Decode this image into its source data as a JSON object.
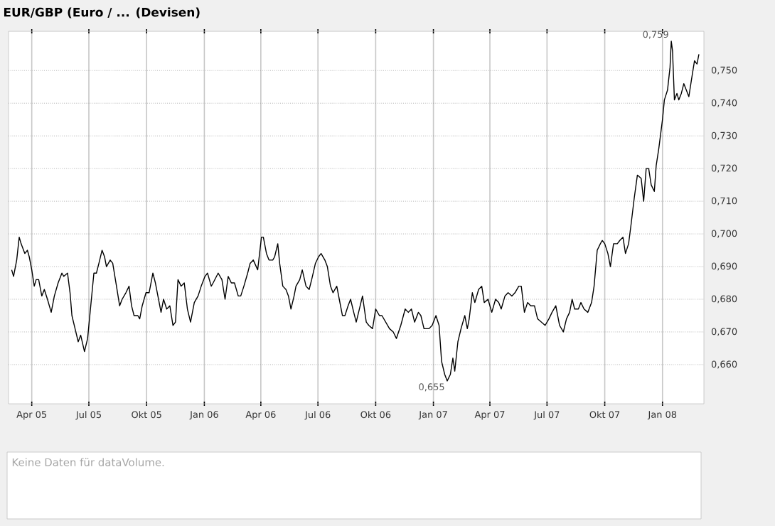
{
  "chart_data": {
    "type": "line",
    "title": "EUR/GBP (Euro / ... (Devisen)",
    "color": "#000000",
    "grid": true,
    "xlim": [
      "2005-02-23",
      "2008-03-07"
    ],
    "ylim": [
      0.648,
      0.762
    ],
    "xticks": [
      {
        "value": "2005-04-01",
        "label": "Apr 05"
      },
      {
        "value": "2005-07-01",
        "label": "Jul 05"
      },
      {
        "value": "2005-10-01",
        "label": "Okt 05"
      },
      {
        "value": "2006-01-01",
        "label": "Jan 06"
      },
      {
        "value": "2006-04-01",
        "label": "Apr 06"
      },
      {
        "value": "2006-07-01",
        "label": "Jul 06"
      },
      {
        "value": "2006-10-01",
        "label": "Okt 06"
      },
      {
        "value": "2007-01-01",
        "label": "Jan 07"
      },
      {
        "value": "2007-04-01",
        "label": "Apr 07"
      },
      {
        "value": "2007-07-01",
        "label": "Jul 07"
      },
      {
        "value": "2007-10-01",
        "label": "Okt 07"
      },
      {
        "value": "2008-01-01",
        "label": "Jan 08"
      }
    ],
    "yticks": [
      {
        "value": 0.66,
        "label": "0,660"
      },
      {
        "value": 0.67,
        "label": "0,670"
      },
      {
        "value": 0.68,
        "label": "0,680"
      },
      {
        "value": 0.69,
        "label": "0,690"
      },
      {
        "value": 0.7,
        "label": "0,700"
      },
      {
        "value": 0.71,
        "label": "0,710"
      },
      {
        "value": 0.72,
        "label": "0,720"
      },
      {
        "value": 0.73,
        "label": "0,730"
      },
      {
        "value": 0.74,
        "label": "0,740"
      },
      {
        "value": 0.75,
        "label": "0,750"
      }
    ],
    "annotations": [
      {
        "text": "0,759",
        "x": "2008-01-15",
        "y": 0.759
      },
      {
        "text": "0,655",
        "x": "2007-01-23",
        "y": 0.655
      },
      "Keine Daten für dataVolume."
    ],
    "x": [
      "2005-02-28",
      "2005-03-03",
      "2005-03-08",
      "2005-03-12",
      "2005-03-15",
      "2005-03-21",
      "2005-03-25",
      "2005-03-28",
      "2005-04-01",
      "2005-04-05",
      "2005-04-08",
      "2005-04-12",
      "2005-04-17",
      "2005-04-21",
      "2005-04-26",
      "2005-05-02",
      "2005-05-07",
      "2005-05-13",
      "2005-05-19",
      "2005-05-22",
      "2005-05-28",
      "2005-06-01",
      "2005-06-04",
      "2005-06-09",
      "2005-06-14",
      "2005-06-18",
      "2005-06-24",
      "2005-06-29",
      "2005-07-04",
      "2005-07-09",
      "2005-07-13",
      "2005-07-17",
      "2005-07-22",
      "2005-07-26",
      "2005-07-29",
      "2005-08-04",
      "2005-08-08",
      "2005-08-14",
      "2005-08-19",
      "2005-08-23",
      "2005-08-29",
      "2005-09-03",
      "2005-09-07",
      "2005-09-11",
      "2005-09-17",
      "2005-09-20",
      "2005-09-24",
      "2005-09-30",
      "2005-10-05",
      "2005-10-11",
      "2005-10-15",
      "2005-10-21",
      "2005-10-24",
      "2005-10-28",
      "2005-11-02",
      "2005-11-07",
      "2005-11-12",
      "2005-11-16",
      "2005-11-20",
      "2005-11-25",
      "2005-11-30",
      "2005-12-05",
      "2005-12-10",
      "2005-12-16",
      "2005-12-22",
      "2005-12-27",
      "2006-01-02",
      "2006-01-06",
      "2006-01-12",
      "2006-01-15",
      "2006-01-23",
      "2006-01-29",
      "2006-02-03",
      "2006-02-08",
      "2006-02-13",
      "2006-02-18",
      "2006-02-24",
      "2006-02-28",
      "2006-03-05",
      "2006-03-11",
      "2006-03-15",
      "2006-03-20",
      "2006-03-27",
      "2006-03-30",
      "2006-04-02",
      "2006-04-05",
      "2006-04-10",
      "2006-04-14",
      "2006-04-20",
      "2006-04-23",
      "2006-04-28",
      "2006-05-01",
      "2006-05-06",
      "2006-05-11",
      "2006-05-15",
      "2006-05-19",
      "2006-05-24",
      "2006-05-27",
      "2006-06-02",
      "2006-06-06",
      "2006-06-12",
      "2006-06-17",
      "2006-06-21",
      "2006-06-27",
      "2006-07-02",
      "2006-07-06",
      "2006-07-12",
      "2006-07-16",
      "2006-07-21",
      "2006-07-25",
      "2006-07-31",
      "2006-08-04",
      "2006-08-09",
      "2006-08-13",
      "2006-08-18",
      "2006-08-22",
      "2006-08-27",
      "2006-08-31",
      "2006-09-05",
      "2006-09-10",
      "2006-09-16",
      "2006-09-20",
      "2006-09-26",
      "2006-10-01",
      "2006-10-07",
      "2006-10-11",
      "2006-10-17",
      "2006-10-23",
      "2006-10-29",
      "2006-11-03",
      "2006-11-10",
      "2006-11-17",
      "2006-11-22",
      "2006-11-27",
      "2006-12-02",
      "2006-12-08",
      "2006-12-12",
      "2006-12-17",
      "2006-12-25",
      "2006-12-30",
      "2007-01-05",
      "2007-01-10",
      "2007-01-14",
      "2007-01-19",
      "2007-01-23",
      "2007-01-28",
      "2007-02-01",
      "2007-02-04",
      "2007-02-09",
      "2007-02-14",
      "2007-02-20",
      "2007-02-24",
      "2007-02-27",
      "2007-03-04",
      "2007-03-08",
      "2007-03-14",
      "2007-03-19",
      "2007-03-23",
      "2007-03-29",
      "2007-04-04",
      "2007-04-10",
      "2007-04-15",
      "2007-04-19",
      "2007-04-25",
      "2007-04-30",
      "2007-05-06",
      "2007-05-11",
      "2007-05-17",
      "2007-05-21",
      "2007-05-26",
      "2007-05-31",
      "2007-06-05",
      "2007-06-11",
      "2007-06-16",
      "2007-06-22",
      "2007-06-28",
      "2007-07-04",
      "2007-07-09",
      "2007-07-15",
      "2007-07-21",
      "2007-07-27",
      "2007-08-01",
      "2007-08-06",
      "2007-08-10",
      "2007-08-14",
      "2007-08-20",
      "2007-08-24",
      "2007-08-29",
      "2007-09-04",
      "2007-09-10",
      "2007-09-14",
      "2007-09-19",
      "2007-09-24",
      "2007-09-27",
      "2007-10-01",
      "2007-10-06",
      "2007-10-10",
      "2007-10-15",
      "2007-10-21",
      "2007-10-25",
      "2007-10-30",
      "2007-11-03",
      "2007-11-08",
      "2007-11-12",
      "2007-11-17",
      "2007-11-22",
      "2007-11-28",
      "2007-12-02",
      "2007-12-06",
      "2007-12-10",
      "2007-12-14",
      "2007-12-19",
      "2007-12-22",
      "2007-12-26",
      "2008-01-01",
      "2008-01-04",
      "2008-01-09",
      "2008-01-13",
      "2008-01-15",
      "2008-01-17",
      "2008-01-20",
      "2008-01-24",
      "2008-01-27",
      "2008-01-31",
      "2008-02-04",
      "2008-02-08",
      "2008-02-12",
      "2008-02-16",
      "2008-02-21",
      "2008-02-25",
      "2008-02-28"
    ],
    "values": [
      0.689,
      0.687,
      0.692,
      0.699,
      0.697,
      0.694,
      0.695,
      0.693,
      0.689,
      0.684,
      0.686,
      0.686,
      0.681,
      0.683,
      0.68,
      0.676,
      0.681,
      0.685,
      0.688,
      0.687,
      0.688,
      0.682,
      0.675,
      0.671,
      0.667,
      0.669,
      0.664,
      0.668,
      0.678,
      0.688,
      0.688,
      0.691,
      0.695,
      0.693,
      0.69,
      0.692,
      0.691,
      0.684,
      0.678,
      0.68,
      0.682,
      0.684,
      0.678,
      0.675,
      0.675,
      0.674,
      0.678,
      0.682,
      0.682,
      0.688,
      0.685,
      0.679,
      0.676,
      0.68,
      0.677,
      0.678,
      0.672,
      0.673,
      0.686,
      0.684,
      0.685,
      0.677,
      0.673,
      0.679,
      0.681,
      0.684,
      0.687,
      0.688,
      0.684,
      0.685,
      0.688,
      0.686,
      0.68,
      0.687,
      0.685,
      0.685,
      0.681,
      0.681,
      0.684,
      0.688,
      0.691,
      0.692,
      0.689,
      0.694,
      0.699,
      0.699,
      0.694,
      0.692,
      0.692,
      0.693,
      0.697,
      0.691,
      0.684,
      0.683,
      0.681,
      0.677,
      0.681,
      0.684,
      0.686,
      0.689,
      0.684,
      0.683,
      0.686,
      0.691,
      0.693,
      0.694,
      0.692,
      0.69,
      0.684,
      0.682,
      0.684,
      0.68,
      0.675,
      0.675,
      0.678,
      0.68,
      0.676,
      0.673,
      0.677,
      0.681,
      0.673,
      0.672,
      0.671,
      0.677,
      0.675,
      0.675,
      0.673,
      0.671,
      0.67,
      0.668,
      0.672,
      0.677,
      0.676,
      0.677,
      0.673,
      0.676,
      0.675,
      0.671,
      0.671,
      0.672,
      0.675,
      0.672,
      0.661,
      0.657,
      0.655,
      0.657,
      0.662,
      0.658,
      0.667,
      0.671,
      0.675,
      0.671,
      0.674,
      0.682,
      0.679,
      0.683,
      0.684,
      0.679,
      0.68,
      0.676,
      0.68,
      0.679,
      0.677,
      0.681,
      0.682,
      0.681,
      0.682,
      0.684,
      0.684,
      0.676,
      0.679,
      0.678,
      0.678,
      0.674,
      0.673,
      0.672,
      0.674,
      0.676,
      0.678,
      0.672,
      0.67,
      0.674,
      0.676,
      0.68,
      0.677,
      0.677,
      0.679,
      0.677,
      0.676,
      0.679,
      0.684,
      0.695,
      0.697,
      0.698,
      0.697,
      0.694,
      0.69,
      0.697,
      0.697,
      0.698,
      0.699,
      0.694,
      0.697,
      0.703,
      0.711,
      0.718,
      0.717,
      0.71,
      0.72,
      0.72,
      0.715,
      0.713,
      0.721,
      0.726,
      0.735,
      0.741,
      0.744,
      0.751,
      0.759,
      0.756,
      0.741,
      0.743,
      0.741,
      0.743,
      0.746,
      0.744,
      0.742,
      0.747,
      0.753,
      0.752,
      0.755
    ]
  }
}
